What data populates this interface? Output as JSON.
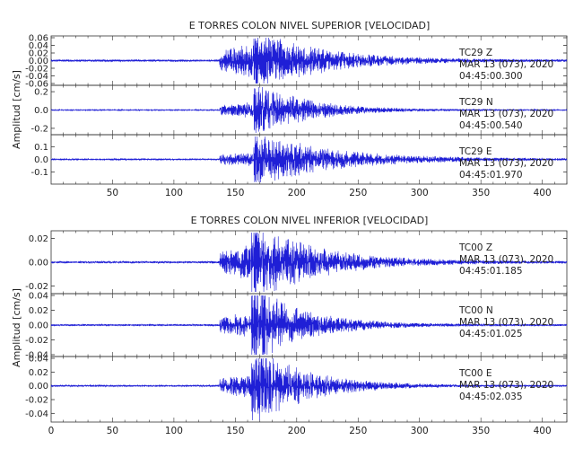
{
  "colors": {
    "trace": "#1f1fd6",
    "axis": "#333333",
    "text": "#222222"
  },
  "chart_data": [
    {
      "type": "line",
      "title": "E TORRES COLON NIVEL SUPERIOR [VELOCIDAD]",
      "ylabel": "Amplitud [cm/s]",
      "xlim": [
        0,
        420
      ],
      "xticks": [
        "50",
        "100",
        "150",
        "200",
        "250",
        "300",
        "350",
        "400"
      ],
      "grid": false,
      "series": [
        {
          "name": "TC29 Z",
          "date": "MAR 13 (073), 2020",
          "time": "04:45:00.300",
          "ylim": [
            -0.06,
            0.06
          ],
          "yticks": [
            "0.06",
            "0.04",
            "0.02",
            "0.00",
            "-0.02",
            "-0.04",
            "-0.06"
          ],
          "onset": 137,
          "peak": 167,
          "peak_amp": 0.055,
          "pre_amp": 0.03,
          "noise": 0.002,
          "decay": 50
        },
        {
          "name": "TC29 N",
          "date": "MAR 13 (073), 2020",
          "time": "04:45:00.540",
          "ylim": [
            -0.25,
            0.25
          ],
          "yticks": [
            "0.2",
            "0.0",
            "-0.2"
          ],
          "onset": 137,
          "peak": 167,
          "peak_amp": 0.2,
          "pre_amp": 0.06,
          "noise": 0.004,
          "decay": 40
        },
        {
          "name": "TC29 E",
          "date": "MAR 13 (073), 2020",
          "time": "04:45:01.970",
          "ylim": [
            -0.18,
            0.18
          ],
          "yticks": [
            "0.1",
            "0.0",
            "-0.1"
          ],
          "onset": 137,
          "peak": 167,
          "peak_amp": 0.14,
          "pre_amp": 0.04,
          "noise": 0.004,
          "decay": 60
        }
      ]
    },
    {
      "type": "line",
      "title": "E TORRES COLON NIVEL INFERIOR [VELOCIDAD]",
      "ylabel": "Amplitud [cm/s]",
      "xlim": [
        0,
        420
      ],
      "xticks": [
        "0",
        "50",
        "100",
        "150",
        "200",
        "250",
        "300",
        "350",
        "400"
      ],
      "grid": false,
      "series": [
        {
          "name": "TC00 Z",
          "date": "MAR 13 (073), 2020",
          "time": "04:45:01.185",
          "ylim": [
            -0.025,
            0.025
          ],
          "yticks": [
            "0.02",
            "0.00",
            "-0.02"
          ],
          "onset": 137,
          "peak": 165,
          "peak_amp": 0.022,
          "pre_amp": 0.01,
          "noise": 0.0006,
          "decay": 50
        },
        {
          "name": "TC00 N",
          "date": "MAR 13 (073), 2020",
          "time": "04:45:01.025",
          "ylim": [
            -0.04,
            0.04
          ],
          "yticks": [
            "0.04",
            "0.02",
            "0.00",
            "-0.02",
            "-0.04"
          ],
          "onset": 137,
          "peak": 165,
          "peak_amp": 0.035,
          "pre_amp": 0.012,
          "noise": 0.0008,
          "decay": 40
        },
        {
          "name": "TC00 E",
          "date": "MAR 13 (073), 2020",
          "time": "04:45:02.035",
          "ylim": [
            -0.05,
            0.04
          ],
          "yticks": [
            "0.04",
            "0.02",
            "0.00",
            "-0.02",
            "-0.04"
          ],
          "onset": 137,
          "peak": 165,
          "peak_amp": 0.04,
          "pre_amp": 0.012,
          "noise": 0.0008,
          "decay": 40
        }
      ]
    }
  ]
}
